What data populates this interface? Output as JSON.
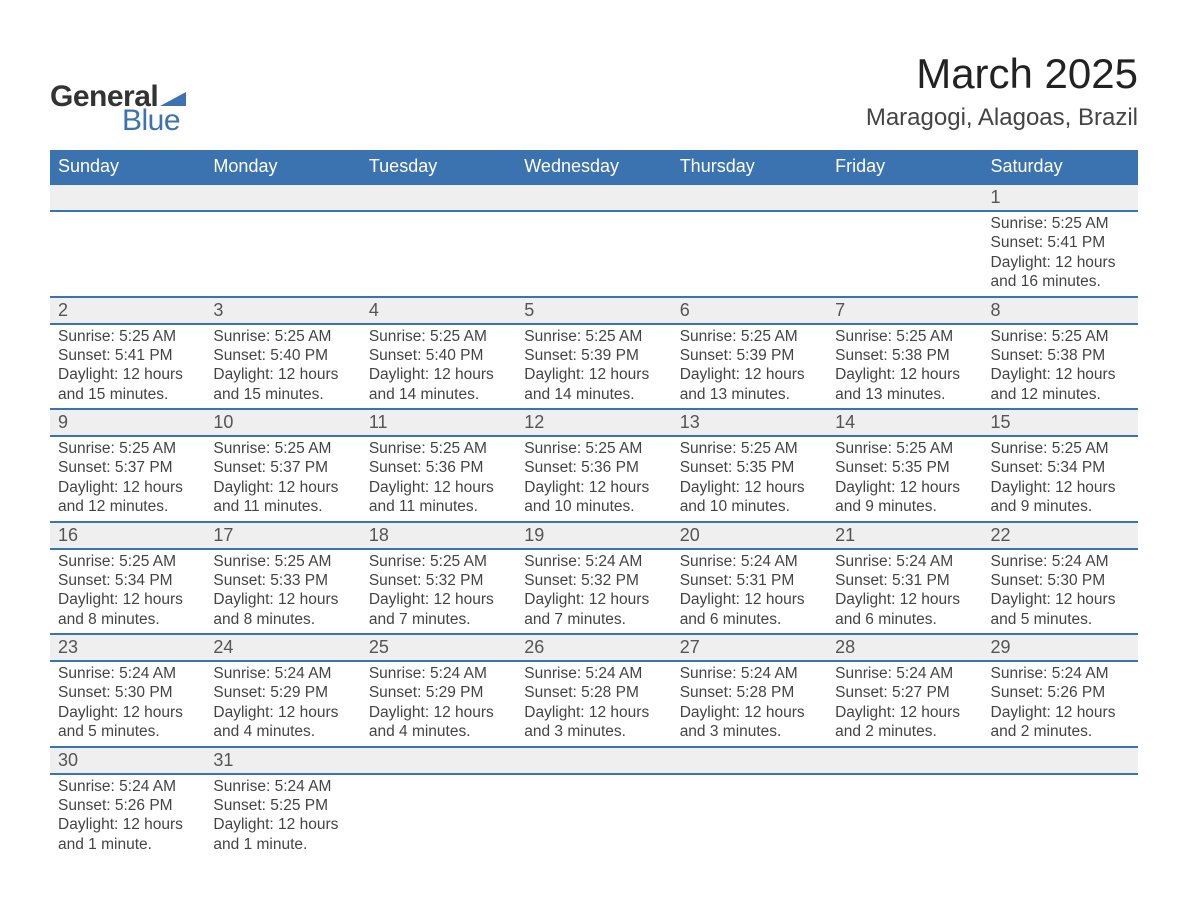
{
  "brand": {
    "word1": "General",
    "word2": "Blue",
    "triangle_color": "#3b72b0"
  },
  "header": {
    "month_title": "March 2025",
    "location": "Maragogi, Alagoas, Brazil"
  },
  "colors": {
    "header_bg": "#3b72b0",
    "header_text": "#ffffff",
    "daynum_bg": "#efefef",
    "row_divider": "#3b72b0",
    "body_text": "#444444",
    "page_bg": "#ffffff"
  },
  "typography": {
    "month_title_fontsize": 42,
    "location_fontsize": 24,
    "weekday_fontsize": 18,
    "daynum_fontsize": 18,
    "detail_fontsize": 15.5
  },
  "layout": {
    "columns": 7,
    "weeks": 6
  },
  "weekdays": [
    "Sunday",
    "Monday",
    "Tuesday",
    "Wednesday",
    "Thursday",
    "Friday",
    "Saturday"
  ],
  "weeks": [
    [
      null,
      null,
      null,
      null,
      null,
      null,
      {
        "n": "1",
        "sr": "Sunrise: 5:25 AM",
        "ss": "Sunset: 5:41 PM",
        "d1": "Daylight: 12 hours",
        "d2": "and 16 minutes."
      }
    ],
    [
      {
        "n": "2",
        "sr": "Sunrise: 5:25 AM",
        "ss": "Sunset: 5:41 PM",
        "d1": "Daylight: 12 hours",
        "d2": "and 15 minutes."
      },
      {
        "n": "3",
        "sr": "Sunrise: 5:25 AM",
        "ss": "Sunset: 5:40 PM",
        "d1": "Daylight: 12 hours",
        "d2": "and 15 minutes."
      },
      {
        "n": "4",
        "sr": "Sunrise: 5:25 AM",
        "ss": "Sunset: 5:40 PM",
        "d1": "Daylight: 12 hours",
        "d2": "and 14 minutes."
      },
      {
        "n": "5",
        "sr": "Sunrise: 5:25 AM",
        "ss": "Sunset: 5:39 PM",
        "d1": "Daylight: 12 hours",
        "d2": "and 14 minutes."
      },
      {
        "n": "6",
        "sr": "Sunrise: 5:25 AM",
        "ss": "Sunset: 5:39 PM",
        "d1": "Daylight: 12 hours",
        "d2": "and 13 minutes."
      },
      {
        "n": "7",
        "sr": "Sunrise: 5:25 AM",
        "ss": "Sunset: 5:38 PM",
        "d1": "Daylight: 12 hours",
        "d2": "and 13 minutes."
      },
      {
        "n": "8",
        "sr": "Sunrise: 5:25 AM",
        "ss": "Sunset: 5:38 PM",
        "d1": "Daylight: 12 hours",
        "d2": "and 12 minutes."
      }
    ],
    [
      {
        "n": "9",
        "sr": "Sunrise: 5:25 AM",
        "ss": "Sunset: 5:37 PM",
        "d1": "Daylight: 12 hours",
        "d2": "and 12 minutes."
      },
      {
        "n": "10",
        "sr": "Sunrise: 5:25 AM",
        "ss": "Sunset: 5:37 PM",
        "d1": "Daylight: 12 hours",
        "d2": "and 11 minutes."
      },
      {
        "n": "11",
        "sr": "Sunrise: 5:25 AM",
        "ss": "Sunset: 5:36 PM",
        "d1": "Daylight: 12 hours",
        "d2": "and 11 minutes."
      },
      {
        "n": "12",
        "sr": "Sunrise: 5:25 AM",
        "ss": "Sunset: 5:36 PM",
        "d1": "Daylight: 12 hours",
        "d2": "and 10 minutes."
      },
      {
        "n": "13",
        "sr": "Sunrise: 5:25 AM",
        "ss": "Sunset: 5:35 PM",
        "d1": "Daylight: 12 hours",
        "d2": "and 10 minutes."
      },
      {
        "n": "14",
        "sr": "Sunrise: 5:25 AM",
        "ss": "Sunset: 5:35 PM",
        "d1": "Daylight: 12 hours",
        "d2": "and 9 minutes."
      },
      {
        "n": "15",
        "sr": "Sunrise: 5:25 AM",
        "ss": "Sunset: 5:34 PM",
        "d1": "Daylight: 12 hours",
        "d2": "and 9 minutes."
      }
    ],
    [
      {
        "n": "16",
        "sr": "Sunrise: 5:25 AM",
        "ss": "Sunset: 5:34 PM",
        "d1": "Daylight: 12 hours",
        "d2": "and 8 minutes."
      },
      {
        "n": "17",
        "sr": "Sunrise: 5:25 AM",
        "ss": "Sunset: 5:33 PM",
        "d1": "Daylight: 12 hours",
        "d2": "and 8 minutes."
      },
      {
        "n": "18",
        "sr": "Sunrise: 5:25 AM",
        "ss": "Sunset: 5:32 PM",
        "d1": "Daylight: 12 hours",
        "d2": "and 7 minutes."
      },
      {
        "n": "19",
        "sr": "Sunrise: 5:24 AM",
        "ss": "Sunset: 5:32 PM",
        "d1": "Daylight: 12 hours",
        "d2": "and 7 minutes."
      },
      {
        "n": "20",
        "sr": "Sunrise: 5:24 AM",
        "ss": "Sunset: 5:31 PM",
        "d1": "Daylight: 12 hours",
        "d2": "and 6 minutes."
      },
      {
        "n": "21",
        "sr": "Sunrise: 5:24 AM",
        "ss": "Sunset: 5:31 PM",
        "d1": "Daylight: 12 hours",
        "d2": "and 6 minutes."
      },
      {
        "n": "22",
        "sr": "Sunrise: 5:24 AM",
        "ss": "Sunset: 5:30 PM",
        "d1": "Daylight: 12 hours",
        "d2": "and 5 minutes."
      }
    ],
    [
      {
        "n": "23",
        "sr": "Sunrise: 5:24 AM",
        "ss": "Sunset: 5:30 PM",
        "d1": "Daylight: 12 hours",
        "d2": "and 5 minutes."
      },
      {
        "n": "24",
        "sr": "Sunrise: 5:24 AM",
        "ss": "Sunset: 5:29 PM",
        "d1": "Daylight: 12 hours",
        "d2": "and 4 minutes."
      },
      {
        "n": "25",
        "sr": "Sunrise: 5:24 AM",
        "ss": "Sunset: 5:29 PM",
        "d1": "Daylight: 12 hours",
        "d2": "and 4 minutes."
      },
      {
        "n": "26",
        "sr": "Sunrise: 5:24 AM",
        "ss": "Sunset: 5:28 PM",
        "d1": "Daylight: 12 hours",
        "d2": "and 3 minutes."
      },
      {
        "n": "27",
        "sr": "Sunrise: 5:24 AM",
        "ss": "Sunset: 5:28 PM",
        "d1": "Daylight: 12 hours",
        "d2": "and 3 minutes."
      },
      {
        "n": "28",
        "sr": "Sunrise: 5:24 AM",
        "ss": "Sunset: 5:27 PM",
        "d1": "Daylight: 12 hours",
        "d2": "and 2 minutes."
      },
      {
        "n": "29",
        "sr": "Sunrise: 5:24 AM",
        "ss": "Sunset: 5:26 PM",
        "d1": "Daylight: 12 hours",
        "d2": "and 2 minutes."
      }
    ],
    [
      {
        "n": "30",
        "sr": "Sunrise: 5:24 AM",
        "ss": "Sunset: 5:26 PM",
        "d1": "Daylight: 12 hours",
        "d2": "and 1 minute."
      },
      {
        "n": "31",
        "sr": "Sunrise: 5:24 AM",
        "ss": "Sunset: 5:25 PM",
        "d1": "Daylight: 12 hours",
        "d2": "and 1 minute."
      },
      null,
      null,
      null,
      null,
      null
    ]
  ]
}
